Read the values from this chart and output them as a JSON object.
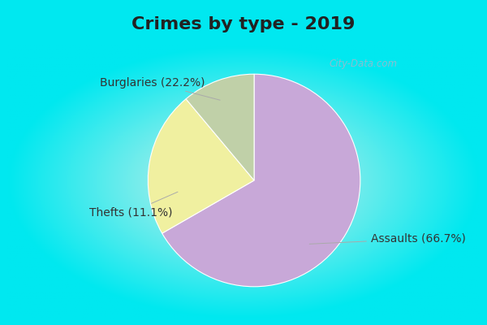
{
  "title": "Crimes by type - 2019",
  "slices": [
    {
      "label": "Assaults (66.7%)",
      "value": 66.7,
      "color": "#C8A8D8"
    },
    {
      "label": "Burglaries (22.2%)",
      "value": 22.2,
      "color": "#F0F0A0"
    },
    {
      "label": "Thefts (11.1%)",
      "value": 11.1,
      "color": "#C0D0A8"
    }
  ],
  "bg_outer": "#00E8F0",
  "bg_inner": "#D8F0E8",
  "title_color": "#222222",
  "title_fontsize": 16,
  "label_fontsize": 10,
  "watermark": "City-Data.com",
  "watermark_color": "#A0B8CC",
  "border_color": "#00E8F0",
  "border_width": 8
}
